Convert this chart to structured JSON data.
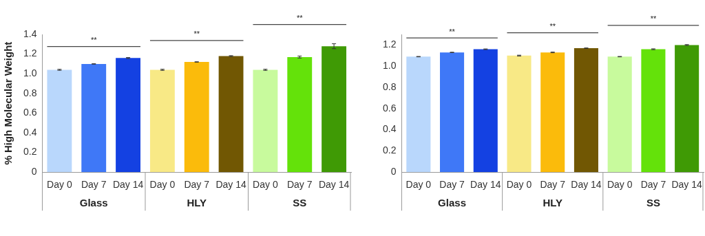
{
  "chart_data": [
    {
      "type": "bar",
      "ylabel": "% High Molecular Weight",
      "categories": [
        "Day 0",
        "Day 7",
        "Day 14",
        "Day 0",
        "Day 7",
        "Day 14",
        "Day 0",
        "Day 7",
        "Day 14"
      ],
      "values": [
        1.04,
        1.1,
        1.16,
        1.04,
        1.12,
        1.18,
        1.04,
        1.17,
        1.28
      ],
      "errors": [
        0.005,
        0.002,
        0.005,
        0.006,
        0.002,
        0.004,
        0.006,
        0.01,
        0.025
      ],
      "colors": [
        "#b9d7fc",
        "#3f78f7",
        "#1441e2",
        "#f8e986",
        "#fbbb0b",
        "#715703",
        "#c8fa9d",
        "#64e20a",
        "#3f9a05"
      ],
      "ylim": [
        0,
        1.4
      ],
      "yticks": [
        0,
        0.2,
        0.4,
        0.6,
        0.8,
        {
          "value": 1,
          "label": "1.0"
        },
        1.2,
        1.4
      ],
      "grid": false,
      "legend": false,
      "annotations": [
        "**",
        "**",
        "**",
        "Glass",
        "HLY",
        "SS"
      ]
    },
    {
      "type": "bar",
      "categories": [
        "Day 0",
        "Day 7",
        "Day 14",
        "Day 0",
        "Day 7",
        "Day 14",
        "Day 0",
        "Day 7",
        "Day 14"
      ],
      "values": [
        1.09,
        1.13,
        1.16,
        1.1,
        1.13,
        1.17,
        1.09,
        1.16,
        1.2
      ],
      "errors": [
        0.002,
        0.002,
        0.003,
        0.004,
        0.003,
        0.002,
        0.002,
        0.004,
        0.004
      ],
      "colors": [
        "#b9d7fc",
        "#3f78f7",
        "#1441e2",
        "#f8e986",
        "#fbbb0b",
        "#715703",
        "#c8fa9d",
        "#64e20a",
        "#3f9a05"
      ],
      "ylim": [
        0,
        1.3
      ],
      "yticks": [
        0,
        0.2,
        0.4,
        0.6,
        0.8,
        {
          "value": 1,
          "label": "1.0"
        },
        1.2
      ],
      "grid": false,
      "legend": false,
      "annotations": [
        "**",
        "**",
        "**",
        "Glass",
        "HLY",
        "SS"
      ]
    }
  ]
}
